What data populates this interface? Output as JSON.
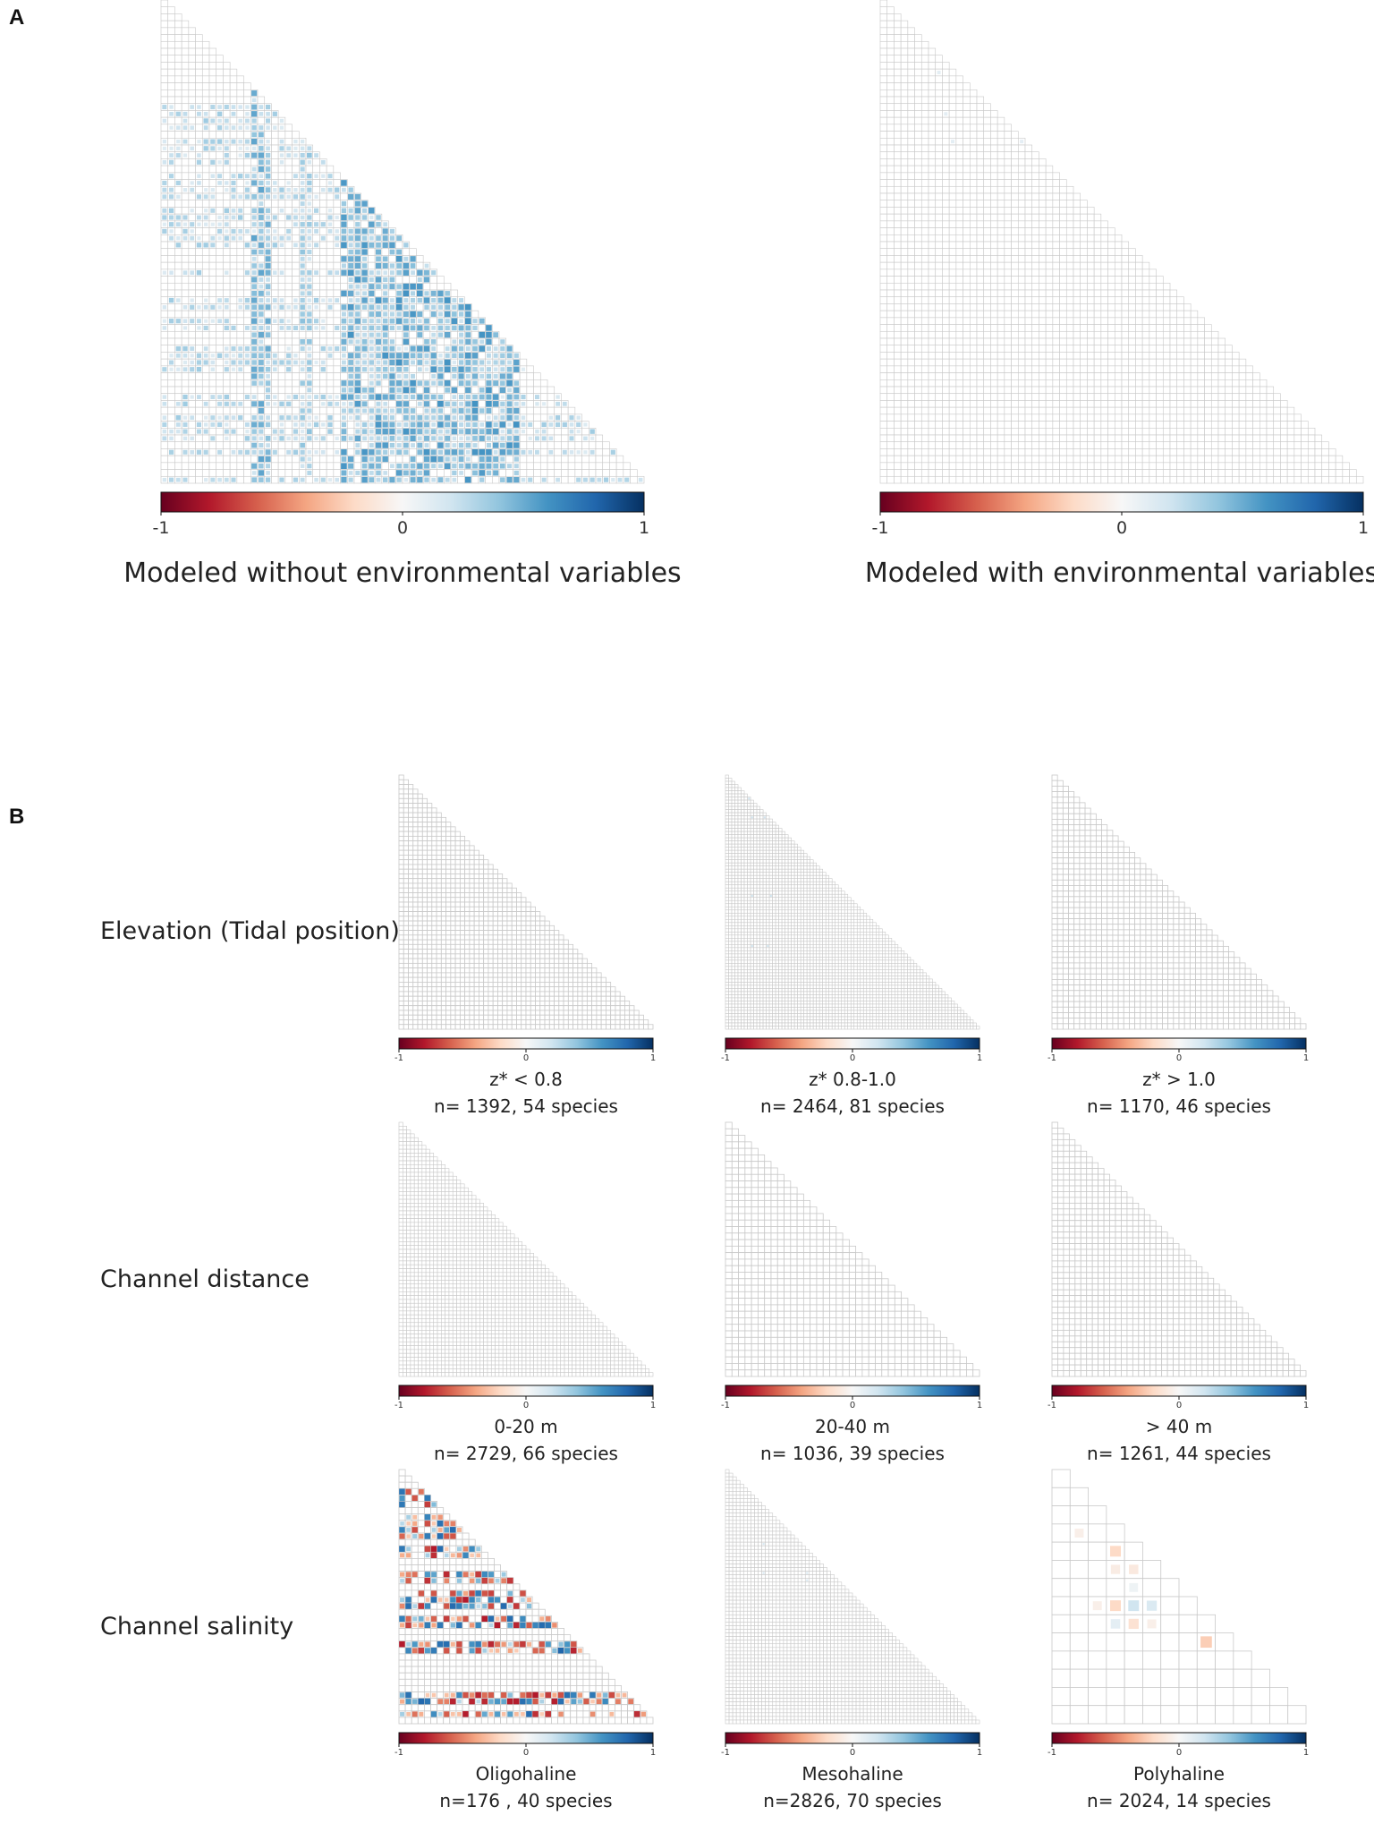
{
  "panel_labels": {
    "a": "A",
    "b": "B"
  },
  "row_labels": [
    "Elevation (Tidal position)",
    "Channel distance",
    "Channel salinity"
  ],
  "colorscale": {
    "min_label": "-1",
    "mid_label": "0",
    "max_label": "1",
    "stops": [
      "#67001f",
      "#b2182b",
      "#d6604d",
      "#f4a582",
      "#fddbc7",
      "#f7f7f7",
      "#d1e5f0",
      "#92c5de",
      "#4393c3",
      "#2166ac",
      "#053061"
    ]
  },
  "grid_color": "#c9c9c9",
  "chart_data": [
    {
      "id": "A1",
      "type": "heatmap",
      "layout_slot": "A1",
      "title": "Modeled without environmental variables",
      "matrix": "lower-triangular species correlation matrix",
      "n_species": 70,
      "value_range": [
        -1,
        1
      ],
      "hotspots": [
        {
          "cols": [
            13,
            14,
            15
          ],
          "level": 0.45
        },
        {
          "cols": [
            20,
            21
          ],
          "level": 0.35
        },
        {
          "cols": [
            26,
            27,
            28,
            29,
            30,
            31,
            32,
            33,
            34,
            35,
            36,
            37,
            38,
            39,
            40,
            41,
            42,
            43,
            44,
            45,
            46,
            47,
            48,
            49,
            50,
            51
          ],
          "level": 0.5,
          "from_row": 14
        }
      ],
      "dense_rows": [
        {
          "rows": [
            14,
            15,
            16,
            17,
            18,
            19,
            20,
            21,
            22,
            23,
            24,
            25,
            26,
            27,
            28,
            29,
            30,
            31,
            32,
            33,
            34,
            35,
            36,
            37,
            38,
            39,
            40,
            41,
            42,
            43,
            44,
            45,
            46,
            47,
            48,
            49,
            50,
            51,
            52,
            53,
            54,
            55,
            56,
            57,
            58,
            59,
            60,
            61,
            62,
            63,
            64,
            65,
            66,
            67,
            68,
            69
          ],
          "level": 0.4
        }
      ]
    },
    {
      "id": "A2",
      "type": "heatmap",
      "layout_slot": "A2",
      "title": "Modeled with environmental variables",
      "matrix": "lower-triangular species correlation matrix",
      "n_species": 70,
      "value_range": [
        -1,
        1
      ],
      "hotspots": [
        {
          "cells": [
            [
              10,
              8
            ],
            [
              16,
              9
            ],
            [
              20,
              10
            ],
            [
              20,
              20
            ]
          ],
          "level": 0.1
        }
      ]
    },
    {
      "id": "B-elev-1",
      "type": "heatmap",
      "layout_slot": "B11",
      "title": "z* < 0.8",
      "subtitle": "n= 1392, 54 species",
      "n_species": 54,
      "value_range": [
        -1,
        1
      ],
      "hotspots": []
    },
    {
      "id": "B-elev-2",
      "type": "heatmap",
      "layout_slot": "B12",
      "title": "z* 0.8-1.0",
      "subtitle": "n= 2464, 81 species",
      "n_species": 81,
      "value_range": [
        -1,
        1
      ],
      "hotspots": [
        {
          "cells": [
            [
              7,
              7
            ],
            [
              13,
              8
            ],
            [
              13,
              12
            ],
            [
              38,
              8
            ],
            [
              38,
              14
            ],
            [
              54,
              8
            ],
            [
              54,
              13
            ]
          ],
          "level": 0.2
        }
      ]
    },
    {
      "id": "B-elev-3",
      "type": "heatmap",
      "layout_slot": "B13",
      "title": "z* > 1.0",
      "subtitle": "n= 1170, 46 species",
      "n_species": 46,
      "value_range": [
        -1,
        1
      ],
      "hotspots": []
    },
    {
      "id": "B-dist-1",
      "type": "heatmap",
      "layout_slot": "B21",
      "title": "0-20 m",
      "subtitle": "n= 2729, 66 species",
      "n_species": 66,
      "value_range": [
        -1,
        1
      ],
      "hotspots": []
    },
    {
      "id": "B-dist-2",
      "type": "heatmap",
      "layout_slot": "B22",
      "title": "20-40 m",
      "subtitle": "n= 1036, 39 species",
      "n_species": 39,
      "value_range": [
        -1,
        1
      ],
      "hotspots": []
    },
    {
      "id": "B-dist-3",
      "type": "heatmap",
      "layout_slot": "B23",
      "title": "> 40 m",
      "subtitle": "n= 1261, 44 species",
      "n_species": 44,
      "value_range": [
        -1,
        1
      ],
      "hotspots": []
    },
    {
      "id": "B-sal-1",
      "type": "heatmap",
      "layout_slot": "B31",
      "title": "Oligohaline",
      "subtitle": "n=176 , 40 species",
      "n_species": 40,
      "value_range": [
        -1,
        1
      ],
      "pattern": "strong mixed positive/negative correlations",
      "strong_rows": [
        3,
        4,
        5,
        7,
        8,
        9,
        10,
        12,
        13,
        16,
        17,
        19,
        20,
        21,
        23,
        24,
        27,
        28,
        35,
        36,
        38
      ]
    },
    {
      "id": "B-sal-2",
      "type": "heatmap",
      "layout_slot": "B32",
      "title": "Mesohaline",
      "subtitle": "n=2826, 70 species",
      "n_species": 70,
      "value_range": [
        -1,
        1
      ],
      "hotspots": [
        {
          "cells": [
            [
              20,
              10
            ],
            [
              28,
              10
            ],
            [
              28,
              22
            ],
            [
              30,
              22
            ]
          ],
          "level": 0.15
        }
      ]
    },
    {
      "id": "B-sal-3",
      "type": "heatmap",
      "layout_slot": "B33",
      "title": "Polyhaline",
      "subtitle": "n= 2024, 14 species",
      "n_species": 14,
      "value_range": [
        -1,
        1
      ],
      "cells": [
        [
          3,
          1,
          -0.06
        ],
        [
          4,
          3,
          -0.2
        ],
        [
          5,
          3,
          -0.08
        ],
        [
          5,
          4,
          -0.1
        ],
        [
          6,
          4,
          0.05
        ],
        [
          7,
          2,
          -0.06
        ],
        [
          7,
          3,
          -0.2
        ],
        [
          7,
          4,
          0.2
        ],
        [
          7,
          5,
          0.15
        ],
        [
          8,
          3,
          0.1
        ],
        [
          8,
          4,
          -0.15
        ],
        [
          8,
          5,
          -0.06
        ],
        [
          9,
          8,
          -0.25
        ]
      ]
    }
  ]
}
